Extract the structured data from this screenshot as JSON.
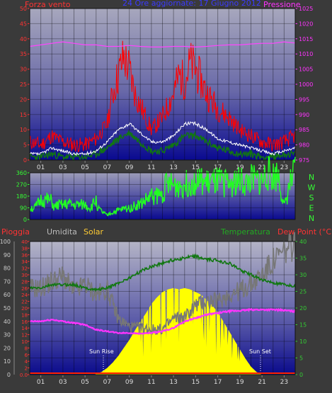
{
  "colors": {
    "background": "#3a3a3a",
    "plot_top": "#a7a7bd",
    "plot_bottom": "#0a0a90",
    "wind_axis": "#ff3333",
    "pressure_axis": "#ff33ff",
    "title": "#3a3aff",
    "temp_axis": "#33cc33",
    "rain_axis": "#ff3333",
    "humidity_axis": "#cccccc",
    "solar_label": "#ffcc33",
    "dir_axis": "#33ff33",
    "wind_speed": "#ff0000",
    "wind_avg": "#ffffff",
    "wind_green": "#117711",
    "pressure_line": "#ff44ff",
    "temperature_line": "#117711",
    "humidity_line": "#777777",
    "dewpoint_line": "#ff33ff",
    "solar_fill": "#ffff00",
    "direction_line": "#22ff22"
  },
  "header": {
    "title": "24 Ore aggiornate: 17 Giugno 2012"
  },
  "x_ticks": [
    "01",
    "03",
    "05",
    "07",
    "09",
    "11",
    "13",
    "15",
    "17",
    "19",
    "21",
    "23"
  ],
  "chart_data": [
    {
      "type": "line",
      "id": "wind_pressure",
      "left_label": "Forza vento",
      "right_label": "Pressione",
      "left_ticks": [
        "0",
        "5",
        "10",
        "15",
        "20",
        "25",
        "30",
        "35",
        "40",
        "45",
        "50"
      ],
      "right_ticks": [
        "975",
        "980",
        "985",
        "990",
        "995",
        "1000",
        "1005",
        "1010",
        "1015",
        "1020",
        "1025"
      ],
      "ylim_left": [
        0,
        50
      ],
      "ylim_right": [
        975,
        1025
      ],
      "series": [
        {
          "x": [
            0,
            1,
            2,
            3,
            4,
            5,
            6,
            7,
            7.5,
            8,
            8.5,
            9,
            9.5,
            10,
            11,
            12,
            13,
            13.5,
            14,
            14.5,
            15,
            16,
            17,
            18,
            19,
            20,
            21,
            22,
            23,
            24
          ],
          "values": [
            6,
            5,
            8,
            6,
            5,
            5,
            7,
            12,
            22,
            28,
            34,
            30,
            22,
            18,
            10,
            14,
            22,
            28,
            26,
            32,
            30,
            22,
            17,
            14,
            10,
            8,
            6,
            5,
            6,
            8
          ]
        },
        {
          "x": [
            0,
            1,
            2,
            3,
            4,
            5,
            6,
            7,
            8,
            9,
            10,
            11,
            12,
            13,
            14,
            15,
            16,
            17,
            18,
            19,
            20,
            21,
            22,
            23,
            24
          ],
          "values": [
            2,
            2,
            4,
            3,
            2,
            2,
            3,
            6,
            10,
            12,
            9,
            6,
            6,
            8,
            12,
            12,
            10,
            7,
            6,
            5,
            4,
            3,
            2,
            3,
            4
          ]
        },
        {
          "x": [
            0,
            1,
            2,
            3,
            4,
            5,
            6,
            7,
            8,
            9,
            10,
            11,
            12,
            13,
            14,
            15,
            16,
            17,
            18,
            19,
            20,
            21,
            22,
            23,
            24
          ],
          "values": [
            1,
            1,
            2,
            1,
            1,
            1,
            2,
            4,
            7,
            9,
            6,
            3,
            3,
            5,
            8,
            8,
            6,
            4,
            3,
            2,
            2,
            1,
            1,
            2,
            2
          ]
        },
        {
          "x": [
            0,
            1,
            2,
            3,
            4,
            5,
            6,
            7,
            8,
            9,
            10,
            11,
            12,
            13,
            14,
            15,
            16,
            17,
            18,
            19,
            20,
            21,
            22,
            23,
            24
          ],
          "values": [
            1012.5,
            1013,
            1013.5,
            1014,
            1013.5,
            1013,
            1013,
            1012.5,
            1012.5,
            1012.8,
            1012.5,
            1012.3,
            1012.3,
            1012.5,
            1012.5,
            1012.3,
            1012.5,
            1012.8,
            1013,
            1013,
            1013.3,
            1013.5,
            1013.5,
            1014,
            1013.6
          ]
        }
      ]
    },
    {
      "type": "line",
      "id": "wind_direction",
      "left_ticks": [
        "0",
        "90",
        "180",
        "270",
        "360"
      ],
      "right_labels": [
        "N",
        "W",
        "S",
        "E",
        "N"
      ],
      "ylim": [
        0,
        360
      ],
      "series": [
        {
          "x": [
            0,
            0.5,
            1,
            1.5,
            2,
            2.2,
            2.5,
            3,
            3.5,
            4,
            5,
            5.5,
            6,
            6.2,
            7,
            7.3,
            8,
            9,
            10,
            11,
            12,
            12.3,
            13,
            14,
            15,
            16,
            17,
            18,
            19,
            19.5,
            20,
            20.5,
            21,
            21.5,
            22,
            22.5,
            23,
            23.5,
            24
          ],
          "values": [
            90,
            90,
            150,
            150,
            140,
            90,
            110,
            110,
            120,
            110,
            115,
            90,
            150,
            80,
            30,
            50,
            70,
            90,
            120,
            180,
            190,
            270,
            260,
            270,
            300,
            280,
            290,
            280,
            300,
            270,
            310,
            300,
            300,
            360,
            330,
            350,
            90,
            270,
            360
          ]
        }
      ]
    },
    {
      "type": "area",
      "id": "temp_humidity_solar",
      "left_labels": [
        "Pioggia",
        "Umidita",
        "Solar"
      ],
      "right_labels": [
        "Temperatura",
        "Dew Point (°C)"
      ],
      "humidity_ticks": [
        "0",
        "10",
        "20",
        "30",
        "40",
        "50",
        "60",
        "70",
        "80",
        "90",
        "100"
      ],
      "rain_ticks": [
        "0.0",
        "2",
        "4",
        "6",
        "8",
        "10",
        "12",
        "14",
        "16",
        "18",
        "20",
        "22",
        "24",
        "26",
        "28",
        "30",
        "32",
        "34",
        "36",
        "38",
        "40"
      ],
      "temp_ticks": [
        "0",
        "5",
        "10",
        "15",
        "20",
        "25",
        "30",
        "35",
        "40"
      ],
      "annotations": [
        "Sun Rise",
        "Sun Set"
      ],
      "series": [
        {
          "x": [
            0,
            1,
            2,
            3,
            4,
            5,
            6,
            7,
            8,
            9,
            10,
            11,
            12,
            13,
            14,
            15,
            16,
            17,
            18,
            19,
            20,
            21,
            22,
            23,
            24
          ],
          "values": [
            26,
            26,
            27,
            27,
            27,
            26,
            25.5,
            26,
            27.5,
            29,
            31,
            32.5,
            33.5,
            34.5,
            35,
            35.5,
            34.5,
            34.3,
            33.5,
            31.5,
            30,
            28.5,
            27.5,
            27,
            26.5
          ]
        },
        {
          "x": [
            0,
            1,
            2,
            3,
            4,
            5,
            6,
            7,
            8,
            9,
            10,
            11,
            12,
            13,
            14,
            15,
            16,
            17,
            18,
            19,
            20,
            21,
            22,
            23,
            24
          ],
          "values": [
            65,
            65,
            70,
            74,
            62,
            68,
            60,
            64,
            42,
            36,
            35,
            34,
            34,
            42,
            43,
            52,
            55,
            55,
            60,
            63,
            68,
            75,
            85,
            92,
            98
          ]
        },
        {
          "x": [
            0,
            1,
            2,
            3,
            4,
            5,
            6,
            7,
            8,
            9,
            10,
            11,
            12,
            13,
            14,
            15,
            16,
            17,
            18,
            19,
            20,
            21,
            22,
            23,
            24
          ],
          "values": [
            16,
            16,
            16.5,
            16,
            15.5,
            15,
            13.5,
            13,
            12.5,
            12.5,
            12.3,
            12.5,
            13,
            14,
            16,
            17,
            18,
            18.5,
            19,
            19.2,
            19.5,
            19.5,
            19.5,
            19.3,
            19
          ]
        },
        {
          "x": [
            5.8,
            6.5,
            7,
            7.5,
            8,
            8.5,
            9,
            9.5,
            10,
            10.5,
            11,
            11.5,
            12,
            12.5,
            13,
            13.5,
            14,
            14.5,
            15,
            15.5,
            16,
            16.5,
            17,
            17.5,
            18,
            18.5,
            19,
            19.5,
            20,
            20.5,
            21
          ],
          "values": [
            0,
            2,
            5,
            9,
            14,
            20,
            26,
            33,
            40,
            46,
            53,
            58,
            62,
            64,
            65,
            64,
            65,
            64,
            62,
            60,
            56,
            52,
            47,
            40,
            33,
            26,
            19,
            12,
            6,
            2,
            0
          ]
        },
        {
          "x": [
            0,
            24
          ],
          "values": [
            0,
            0
          ]
        }
      ]
    }
  ]
}
